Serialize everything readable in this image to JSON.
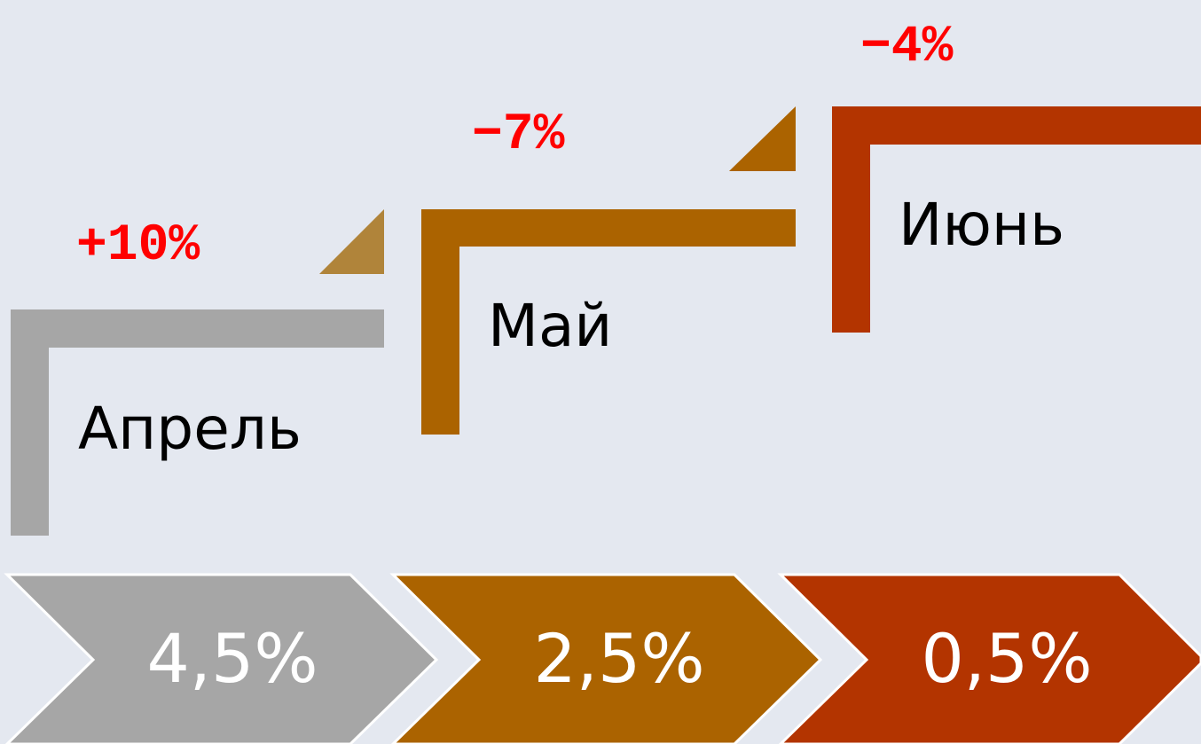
{
  "steps": [
    {
      "label": "Апрель",
      "change": "+10%",
      "value": "4,5%"
    },
    {
      "label": "Май",
      "change": "−7%",
      "value": "2,5%"
    },
    {
      "label": "Июнь",
      "change": "−4%",
      "value": "0,5%"
    }
  ]
}
